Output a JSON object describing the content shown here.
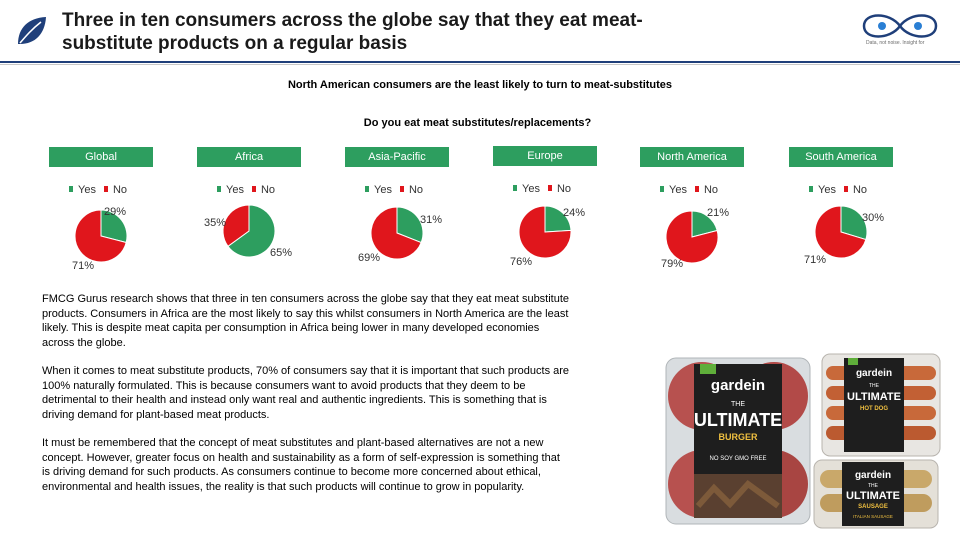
{
  "header": {
    "title": "Three in ten consumers across the globe say that they eat meat-substitute products on a regular basis",
    "brand_tagline": "Data, not noise. Insight for"
  },
  "subtitle": "North American consumers are the least likely to turn to meat-substitutes",
  "question": "Do you eat meat substitutes/replacements?",
  "legend": {
    "yes": "Yes",
    "no": "No"
  },
  "colors": {
    "yes": "#2d9e5f",
    "no": "#e0161c",
    "region_fill": "#2d9e5f",
    "accent": "#1f3f7a"
  },
  "chart_data": {
    "type": "pie",
    "title": "Do you eat meat substitutes/replacements?",
    "legend_entries": [
      "Yes",
      "No"
    ],
    "charts": [
      {
        "region": "Global",
        "yes": 29,
        "no": 71,
        "yes_label": "29%",
        "no_label": "71%"
      },
      {
        "region": "Africa",
        "yes": 65,
        "no": 35,
        "yes_label": "65%",
        "no_label": "35%"
      },
      {
        "region": "Asia-Pacific",
        "yes": 31,
        "no": 69,
        "yes_label": "31%",
        "no_label": "69%"
      },
      {
        "region": "Europe",
        "yes": 24,
        "no": 76,
        "yes_label": "24%",
        "no_label": "76%"
      },
      {
        "region": "North America",
        "yes": 21,
        "no": 79,
        "yes_label": "21%",
        "no_label": "79%"
      },
      {
        "region": "South America",
        "yes": 30,
        "no": 71,
        "yes_label": "30%",
        "no_label": "71%"
      }
    ]
  },
  "body": {
    "p1": "FMCG Gurus research shows that three in ten consumers across the globe say that they eat meat substitute products. Consumers in Africa are the most likely to say this whilst consumers in North America are the least likely. This is despite meat capita per consumption in Africa being lower in many developed economies across the globe.",
    "p2": "When it comes to meat substitute products, 70% of consumers say that it is important that such products are 100% naturally formulated. This is because consumers want to avoid products that they deem to be detrimental to their health and instead only want real and authentic ingredients. This is something that is driving demand for plant-based meat products.",
    "p3": "It must be remembered that the concept of meat substitutes and plant-based alternatives are not a new concept. However, greater focus on health and sustainability as a form of self-expression is something that is driving demand for such products. As consumers continue to become more concerned about ethical, environmental and health issues, the reality is that such products will continue to grow in popularity."
  },
  "products": {
    "burger": {
      "brand": "gardein",
      "line1": "THE",
      "line2": "ULTIMATE",
      "line3": "BURGER",
      "note": "NO SOY  GMO FREE"
    },
    "hotdog": {
      "brand": "gardein",
      "line1": "THE",
      "line2": "ULTIMATE",
      "line3": "HOT DOG"
    },
    "sausage": {
      "brand": "gardein",
      "line1": "THE",
      "line2": "ULTIMATE",
      "line3": "SAUSAGE",
      "flavor": "ITALIAN SAUSAGE"
    }
  }
}
